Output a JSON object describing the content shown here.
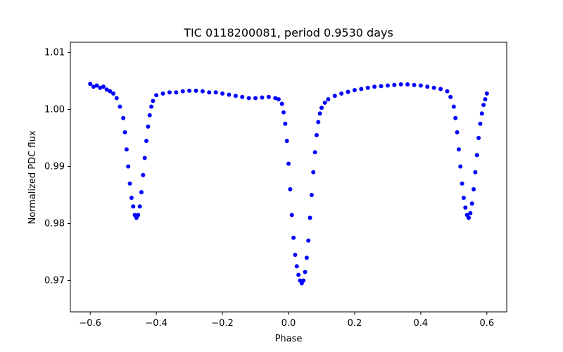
{
  "chart_data": {
    "type": "scatter",
    "title": "TIC 0118200081, period 0.9530 days",
    "xlabel": "Phase",
    "ylabel": "Normalized PDC flux",
    "xlim": [
      -0.66,
      0.66
    ],
    "ylim": [
      0.9645,
      1.0118
    ],
    "xticks": [
      -0.6,
      -0.4,
      -0.2,
      0.0,
      0.2,
      0.4,
      0.6
    ],
    "xtick_labels": [
      "−0.6",
      "−0.4",
      "−0.2",
      "0.0",
      "0.2",
      "0.4",
      "0.6"
    ],
    "yticks": [
      0.97,
      0.98,
      0.99,
      1.0,
      1.01
    ],
    "ytick_labels": [
      "0.97",
      "0.98",
      "0.99",
      "1.00",
      "1.01"
    ],
    "grid": false,
    "series": [
      {
        "color": "#0000ff",
        "marker": "circle",
        "points": [
          [
            -0.6,
            1.0045
          ],
          [
            -0.59,
            1.004
          ],
          [
            -0.58,
            1.0042
          ],
          [
            -0.57,
            1.0038
          ],
          [
            -0.56,
            1.004
          ],
          [
            -0.55,
            1.0035
          ],
          [
            -0.54,
            1.0032
          ],
          [
            -0.53,
            1.0028
          ],
          [
            -0.52,
            1.002
          ],
          [
            -0.51,
            1.0005
          ],
          [
            -0.5,
            0.9985
          ],
          [
            -0.495,
            0.996
          ],
          [
            -0.49,
            0.993
          ],
          [
            -0.485,
            0.99
          ],
          [
            -0.48,
            0.987
          ],
          [
            -0.475,
            0.9845
          ],
          [
            -0.47,
            0.983
          ],
          [
            -0.465,
            0.9815
          ],
          [
            -0.46,
            0.981
          ],
          [
            -0.455,
            0.9815
          ],
          [
            -0.45,
            0.983
          ],
          [
            -0.445,
            0.9855
          ],
          [
            -0.44,
            0.9885
          ],
          [
            -0.435,
            0.9915
          ],
          [
            -0.43,
            0.9945
          ],
          [
            -0.425,
            0.997
          ],
          [
            -0.42,
            0.999
          ],
          [
            -0.415,
            1.0005
          ],
          [
            -0.41,
            1.0015
          ],
          [
            -0.4,
            1.0025
          ],
          [
            -0.38,
            1.0028
          ],
          [
            -0.36,
            1.003
          ],
          [
            -0.34,
            1.003
          ],
          [
            -0.32,
            1.0032
          ],
          [
            -0.3,
            1.0033
          ],
          [
            -0.28,
            1.0033
          ],
          [
            -0.26,
            1.0032
          ],
          [
            -0.24,
            1.003
          ],
          [
            -0.22,
            1.003
          ],
          [
            -0.2,
            1.0028
          ],
          [
            -0.18,
            1.0026
          ],
          [
            -0.16,
            1.0024
          ],
          [
            -0.14,
            1.0022
          ],
          [
            -0.12,
            1.002
          ],
          [
            -0.1,
            1.002
          ],
          [
            -0.08,
            1.0021
          ],
          [
            -0.06,
            1.0022
          ],
          [
            -0.04,
            1.002
          ],
          [
            -0.03,
            1.0018
          ],
          [
            -0.02,
            1.001
          ],
          [
            -0.015,
            0.9995
          ],
          [
            -0.01,
            0.9975
          ],
          [
            -0.005,
            0.9945
          ],
          [
            0.0,
            0.9905
          ],
          [
            0.005,
            0.986
          ],
          [
            0.01,
            0.9815
          ],
          [
            0.015,
            0.9775
          ],
          [
            0.02,
            0.9745
          ],
          [
            0.025,
            0.9725
          ],
          [
            0.03,
            0.971
          ],
          [
            0.035,
            0.97
          ],
          [
            0.04,
            0.9695
          ],
          [
            0.045,
            0.97
          ],
          [
            0.05,
            0.9715
          ],
          [
            0.055,
            0.974
          ],
          [
            0.06,
            0.977
          ],
          [
            0.065,
            0.981
          ],
          [
            0.07,
            0.985
          ],
          [
            0.075,
            0.989
          ],
          [
            0.08,
            0.9925
          ],
          [
            0.085,
            0.9955
          ],
          [
            0.09,
            0.9978
          ],
          [
            0.095,
            0.9993
          ],
          [
            0.1,
            1.0003
          ],
          [
            0.11,
            1.0012
          ],
          [
            0.12,
            1.0018
          ],
          [
            0.14,
            1.0024
          ],
          [
            0.16,
            1.0028
          ],
          [
            0.18,
            1.0031
          ],
          [
            0.2,
            1.0034
          ],
          [
            0.22,
            1.0036
          ],
          [
            0.24,
            1.0038
          ],
          [
            0.26,
            1.004
          ],
          [
            0.28,
            1.0041
          ],
          [
            0.3,
            1.0042
          ],
          [
            0.32,
            1.0043
          ],
          [
            0.34,
            1.0044
          ],
          [
            0.36,
            1.0044
          ],
          [
            0.38,
            1.0043
          ],
          [
            0.4,
            1.0042
          ],
          [
            0.42,
            1.004
          ],
          [
            0.44,
            1.0038
          ],
          [
            0.46,
            1.0036
          ],
          [
            0.48,
            1.0032
          ],
          [
            0.49,
            1.0022
          ],
          [
            0.5,
            1.0005
          ],
          [
            0.505,
            0.9985
          ],
          [
            0.51,
            0.996
          ],
          [
            0.515,
            0.993
          ],
          [
            0.52,
            0.99
          ],
          [
            0.525,
            0.987
          ],
          [
            0.53,
            0.9845
          ],
          [
            0.535,
            0.9828
          ],
          [
            0.54,
            0.9815
          ],
          [
            0.545,
            0.981
          ],
          [
            0.55,
            0.9818
          ],
          [
            0.555,
            0.9835
          ],
          [
            0.56,
            0.986
          ],
          [
            0.565,
            0.989
          ],
          [
            0.57,
            0.992
          ],
          [
            0.575,
            0.995
          ],
          [
            0.58,
            0.9975
          ],
          [
            0.585,
            0.9993
          ],
          [
            0.59,
            1.0008
          ],
          [
            0.595,
            1.0018
          ],
          [
            0.6,
            1.0028
          ]
        ]
      }
    ]
  }
}
